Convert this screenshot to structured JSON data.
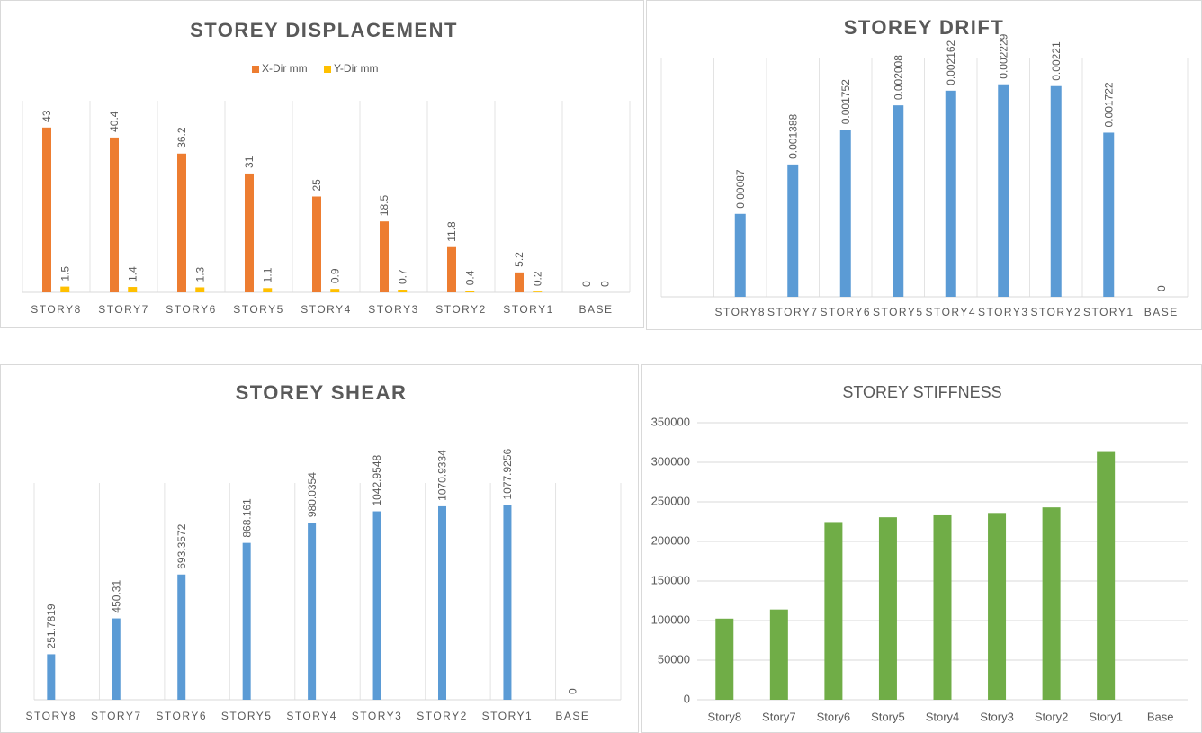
{
  "chart_data": [
    {
      "type": "bar",
      "title": "STOREY DISPLACEMENT",
      "categories": [
        "STORY8",
        "STORY7",
        "STORY6",
        "STORY5",
        "STORY4",
        "STORY3",
        "STORY2",
        "STORY1",
        "BASE"
      ],
      "series": [
        {
          "name": "X-Dir mm",
          "color": "#ed7d31",
          "values": [
            43,
            40.4,
            36.2,
            31,
            25,
            18.5,
            11.8,
            5.2,
            0
          ]
        },
        {
          "name": "Y-Dir mm",
          "color": "#ffc000",
          "values": [
            1.5,
            1.4,
            1.3,
            1.1,
            0.9,
            0.7,
            0.4,
            0.2,
            0
          ]
        }
      ],
      "ylim": [
        0,
        50
      ],
      "legend": "top"
    },
    {
      "type": "bar",
      "title": "STOREY DRIFT",
      "categories": [
        null,
        "STORY8",
        "STORY7",
        "STORY6",
        "STORY5",
        "STORY4",
        "STORY3",
        "STORY2",
        "STORY1",
        "BASE"
      ],
      "values": [
        null,
        0.00087,
        0.001388,
        0.001752,
        0.002008,
        0.002162,
        0.002229,
        0.00221,
        0.001722,
        0
      ],
      "color": "#5b9bd5",
      "ylim": [
        0,
        0.0025
      ]
    },
    {
      "type": "bar",
      "title": "STOREY SHEAR",
      "categories": [
        "STORY8",
        "STORY7",
        "STORY6",
        "STORY5",
        "STORY4",
        "STORY3",
        "STORY2",
        "STORY1",
        "BASE"
      ],
      "values": [
        251.7819,
        450.31,
        693.3572,
        868.161,
        980.0354,
        1042.9548,
        1070.9334,
        1077.9256,
        0
      ],
      "color": "#5b9bd5",
      "ylim": [
        0,
        1200
      ]
    },
    {
      "type": "bar",
      "title": "STOREY STIFFNESS",
      "categories": [
        "Story8",
        "Story7",
        "Story6",
        "Story5",
        "Story4",
        "Story3",
        "Story2",
        "Story1",
        "Base"
      ],
      "values": [
        102500,
        114000,
        224500,
        230500,
        233000,
        236000,
        243000,
        313000,
        0
      ],
      "color": "#70ad47",
      "ylim": [
        0,
        350000
      ],
      "yticks": [
        0,
        50000,
        100000,
        150000,
        200000,
        250000,
        300000,
        350000
      ],
      "grid": true
    }
  ]
}
